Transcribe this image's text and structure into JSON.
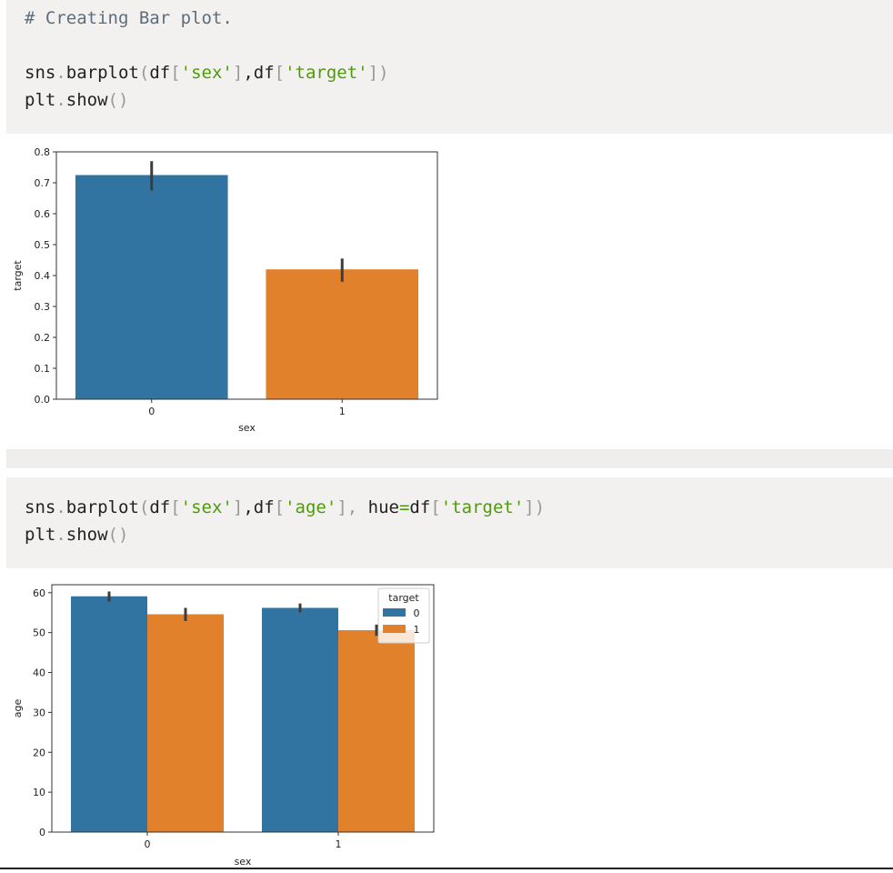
{
  "cell1": {
    "comment": "# Creating Bar plot.",
    "line1": [
      "sns",
      ".",
      "barplot",
      "(",
      "df",
      "[",
      "'sex'",
      "]",
      ",",
      "df",
      "[",
      "'target'",
      "])"
    ],
    "line2": [
      "plt",
      ".",
      "show",
      "()"
    ]
  },
  "cell2": {
    "line1": [
      "sns",
      ".",
      "barplot",
      "(",
      "df",
      "[",
      "'sex'",
      "]",
      ",",
      "df",
      "[",
      "'age'",
      "],",
      " hue",
      "=",
      "df",
      "[",
      "'target'",
      "])"
    ],
    "line2": [
      "plt",
      ".",
      "show",
      "()"
    ]
  },
  "chart_data": [
    {
      "type": "bar",
      "categories": [
        "0",
        "1"
      ],
      "values": [
        0.725,
        0.42
      ],
      "error_bars": [
        [
          0.675,
          0.77
        ],
        [
          0.38,
          0.455
        ]
      ],
      "colors": [
        "#3274a1",
        "#e1812c"
      ],
      "xlabel": "sex",
      "ylabel": "target",
      "ylim": [
        0,
        0.8
      ],
      "yticks": [
        "0.0",
        "0.1",
        "0.2",
        "0.3",
        "0.4",
        "0.5",
        "0.6",
        "0.7",
        "0.8"
      ],
      "grid": false
    },
    {
      "type": "bar",
      "categories": [
        "0",
        "1"
      ],
      "series": [
        {
          "name": "0",
          "values": [
            59.1,
            56.2
          ],
          "error_bars": [
            [
              57.8,
              60.3
            ],
            [
              55.1,
              57.3
            ]
          ],
          "color": "#3274a1"
        },
        {
          "name": "1",
          "values": [
            54.6,
            50.6
          ],
          "error_bars": [
            [
              52.9,
              56.2
            ],
            [
              49.2,
              52.0
            ]
          ],
          "color": "#e1812c"
        }
      ],
      "xlabel": "sex",
      "ylabel": "age",
      "ylim": [
        0,
        62
      ],
      "yticks": [
        "0",
        "10",
        "20",
        "30",
        "40",
        "50",
        "60"
      ],
      "legend": {
        "title": "target",
        "position": "top-right"
      },
      "grid": false
    }
  ]
}
